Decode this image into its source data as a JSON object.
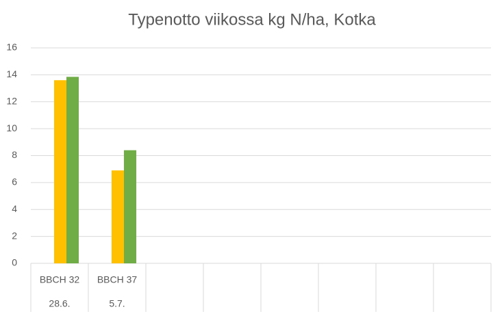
{
  "chart_data": {
    "type": "bar",
    "title": "Typenotto viikossa kg N/ha, Kotka",
    "categories": [
      "BBCH 32",
      "BBCH 37",
      null,
      null,
      null,
      null,
      null,
      null
    ],
    "dates": [
      "28.6.",
      "5.7.",
      null,
      null,
      null,
      null,
      null,
      null
    ],
    "series": [
      {
        "color": "#ffc000",
        "values": [
          13.6,
          6.9,
          null,
          null,
          null,
          null,
          null,
          null
        ]
      },
      {
        "color": "#70ad47",
        "values": [
          13.85,
          8.4,
          null,
          null,
          null,
          null,
          null,
          null
        ]
      }
    ],
    "ylim": [
      0,
      16
    ],
    "yticks": [
      0,
      2,
      4,
      6,
      8,
      10,
      12,
      14,
      16
    ],
    "grid": true
  }
}
